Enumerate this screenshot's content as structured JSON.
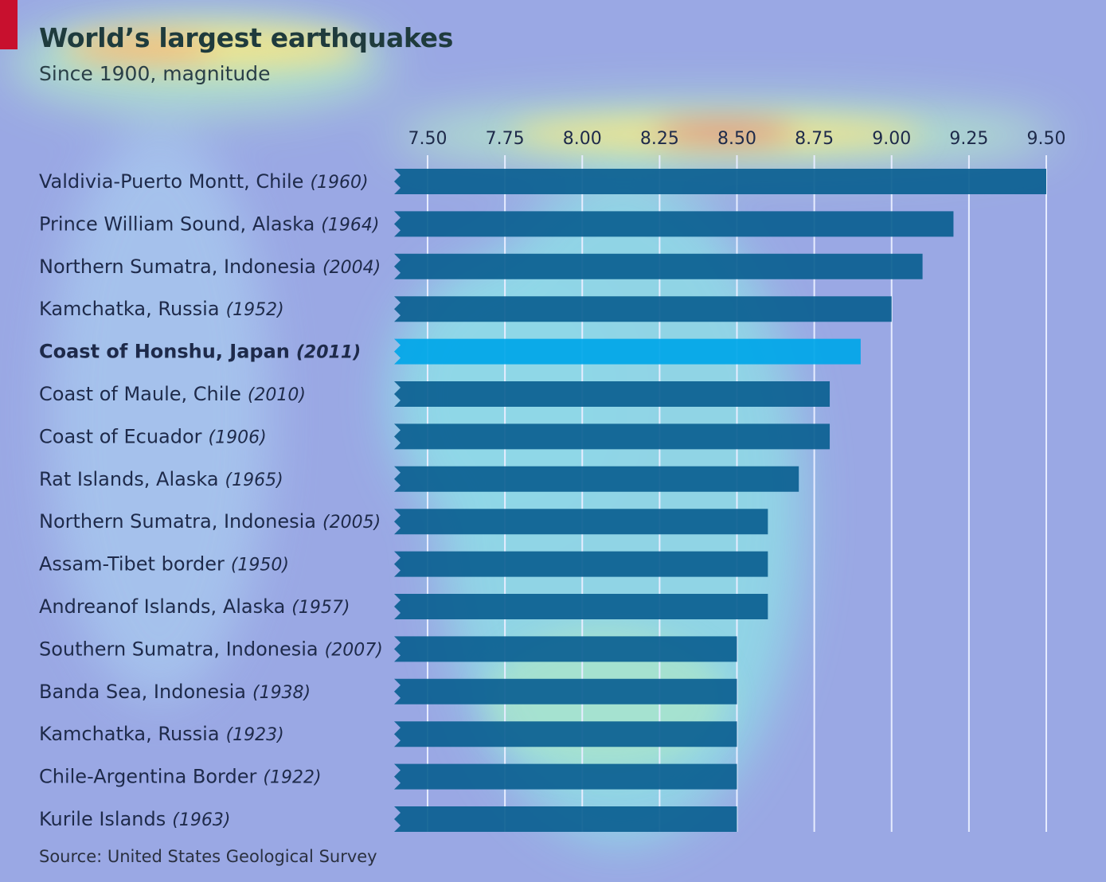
{
  "header": {
    "title": "World’s largest earthquakes",
    "subtitle": "Since 1900, magnitude"
  },
  "footer": {
    "source": "Source: United States Geological Survey"
  },
  "colors": {
    "bar": "#0b5f91",
    "bar_highlight": "#00a6e8",
    "accent": "#c8102e",
    "gridline": "#e6ecff"
  },
  "chart_data": {
    "type": "bar",
    "orientation": "horizontal",
    "xlim": [
      7.5,
      9.5
    ],
    "ticks": [
      "7.50",
      "7.75",
      "8.00",
      "8.25",
      "8.50",
      "8.75",
      "9.00",
      "9.25",
      "9.50"
    ],
    "grid": true,
    "categories": [
      {
        "place": "Valdivia-Puerto Montt, Chile",
        "year": "(1960)"
      },
      {
        "place": "Prince William Sound, Alaska",
        "year": "(1964)"
      },
      {
        "place": "Northern Sumatra, Indonesia",
        "year": "(2004)"
      },
      {
        "place": "Kamchatka, Russia",
        "year": "(1952)"
      },
      {
        "place": "Coast of Honshu, Japan",
        "year": "(2011)",
        "highlight": true
      },
      {
        "place": "Coast of Maule, Chile",
        "year": "(2010)"
      },
      {
        "place": "Coast of Ecuador",
        "year": "(1906)"
      },
      {
        "place": "Rat Islands, Alaska",
        "year": "(1965)"
      },
      {
        "place": "Northern Sumatra, Indonesia",
        "year": "(2005)"
      },
      {
        "place": "Assam-Tibet border",
        "year": "(1950)"
      },
      {
        "place": "Andreanof Islands, Alaska",
        "year": "(1957)"
      },
      {
        "place": "Southern Sumatra, Indonesia",
        "year": "(2007)"
      },
      {
        "place": "Banda Sea, Indonesia",
        "year": "(1938)"
      },
      {
        "place": "Kamchatka, Russia",
        "year": "(1923)"
      },
      {
        "place": "Chile-Argentina Border",
        "year": "(1922)"
      },
      {
        "place": "Kurile Islands",
        "year": "(1963)"
      }
    ],
    "values": [
      9.5,
      9.2,
      9.1,
      9.0,
      8.9,
      8.8,
      8.8,
      8.7,
      8.6,
      8.6,
      8.6,
      8.5,
      8.5,
      8.5,
      8.5,
      8.5
    ]
  }
}
